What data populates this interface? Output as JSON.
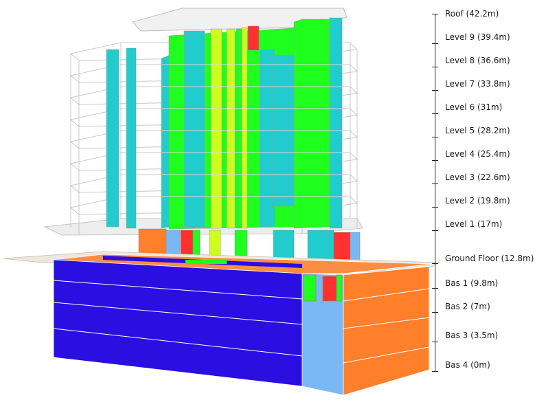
{
  "levels": [
    {
      "name": "Roof (42.2m)"
    },
    {
      "name": "Level 9 (39.4m)"
    },
    {
      "name": "Level 8 (36.6m)"
    },
    {
      "name": "Level 7 (33.8m)"
    },
    {
      "name": "Level 6 (31m)"
    },
    {
      "name": "Level 5 (28.2m)"
    },
    {
      "name": "Level 4 (25.4m)"
    },
    {
      "name": "Level 3 (22.6m)"
    },
    {
      "name": "Level 2 (19.8m)"
    },
    {
      "name": "Level 1 (17m)"
    },
    {
      "name": "Ground Floor (12.8m)"
    },
    {
      "name": "Bas 1 (9.8m)"
    },
    {
      "name": "Bas 2 (7m)"
    },
    {
      "name": "Bas 3 (3.5m)"
    },
    {
      "name": "Bas 4 (0m)"
    }
  ],
  "colors": {
    "basement_front": "#2a0fe0",
    "basement_side": "#ff7f2a",
    "core_light_blue": "#7ab8f5",
    "wall_green": "#1eff1e",
    "wall_cyan": "#22cccc",
    "wall_yellow": "#ccff1e",
    "wall_red": "#ff3030",
    "slab": "#e8e8e8",
    "ground_slab": "#efe6dc",
    "grid_line": "#c8c8c8"
  }
}
